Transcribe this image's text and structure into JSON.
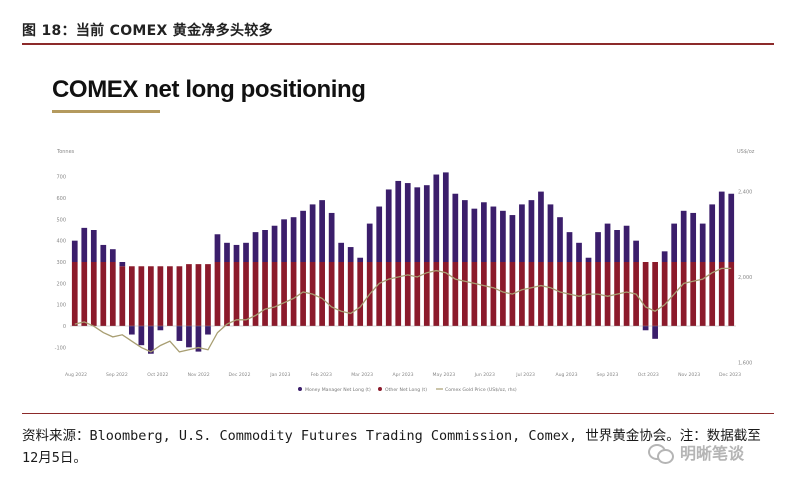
{
  "header": {
    "figure_caption": "图 18：当前 COMEX 黄金净多头较多"
  },
  "footer": {
    "source": "资料来源：Bloomberg, U.S. Commodity Futures Trading Commission, Comex, 世界黄金协会。注：数据截至12月5日。",
    "watermark": "明晰笔谈"
  },
  "colors": {
    "money_manager": "#3b1e6b",
    "other": "#8b1a2b",
    "gold_price": "#a89e72",
    "accent_rule": "#8c2a2a",
    "title_underline": "#b49a5e"
  },
  "chart_data": {
    "type": "bar",
    "title": "COMEX net long positioning",
    "ylabel": "Tonnes",
    "y2label": "US$/oz",
    "ylim": [
      -150,
      750
    ],
    "y_ticks": [
      -100,
      0,
      100,
      200,
      300,
      400,
      500,
      600,
      700
    ],
    "y2_ticks": [
      "1,600",
      "2,000",
      "2,400"
    ],
    "x_tick_labels": [
      "Aug 2022",
      "Sep 2022",
      "Oct 2022",
      "Nov 2022",
      "Dec 2022",
      "Jan 2023",
      "Feb 2023",
      "Mar 2023",
      "Apr 2023",
      "May 2023",
      "Jun 2023",
      "Jul 2023",
      "Aug 2023",
      "Sep 2023",
      "Oct 2023",
      "Nov 2023",
      "Dec 2023"
    ],
    "legend_position": "bottom",
    "stacked": true,
    "series": [
      {
        "name": "Money Manager Net Long (t)",
        "values": [
          100,
          160,
          150,
          80,
          60,
          20,
          -40,
          -90,
          -130,
          -20,
          0,
          -70,
          -100,
          -120,
          -40,
          130,
          90,
          80,
          90,
          140,
          150,
          170,
          200,
          210,
          240,
          270,
          290,
          230,
          90,
          70,
          20,
          180,
          260,
          340,
          380,
          370,
          350,
          360,
          410,
          420,
          320,
          290,
          250,
          280,
          260,
          240,
          220,
          270,
          290,
          330,
          270,
          210,
          140,
          90,
          20,
          140,
          180,
          150,
          170,
          100,
          -20,
          -60,
          50,
          180,
          240,
          230,
          180,
          270,
          330,
          320
        ]
      },
      {
        "name": "Other Net Long (t)",
        "values": [
          300,
          300,
          300,
          300,
          300,
          280,
          280,
          280,
          280,
          280,
          280,
          280,
          290,
          290,
          290,
          300,
          300,
          300,
          300,
          300,
          300,
          300,
          300,
          300,
          300,
          300,
          300,
          300,
          300,
          300,
          300,
          300,
          300,
          300,
          300,
          300,
          300,
          300,
          300,
          300,
          300,
          300,
          300,
          300,
          300,
          300,
          300,
          300,
          300,
          300,
          300,
          300,
          300,
          300,
          300,
          300,
          300,
          300,
          300,
          300,
          300,
          300,
          300,
          300,
          300,
          300,
          300,
          300,
          300,
          300
        ]
      },
      {
        "name": "Comex Gold Price (US$/oz, rhs)",
        "values": [
          1780,
          1790,
          1770,
          1740,
          1720,
          1730,
          1700,
          1670,
          1650,
          1680,
          1700,
          1650,
          1660,
          1670,
          1660,
          1740,
          1780,
          1800,
          1800,
          1820,
          1850,
          1860,
          1880,
          1900,
          1930,
          1920,
          1900,
          1860,
          1840,
          1830,
          1860,
          1920,
          1970,
          1990,
          2000,
          2010,
          2000,
          2020,
          2030,
          2020,
          1990,
          1980,
          1970,
          1960,
          1950,
          1930,
          1920,
          1940,
          1950,
          1960,
          1950,
          1930,
          1920,
          1910,
          1920,
          1920,
          1910,
          1920,
          1930,
          1920,
          1860,
          1840,
          1870,
          1920,
          1970,
          1980,
          1990,
          2020,
          2040,
          2040
        ]
      }
    ]
  }
}
